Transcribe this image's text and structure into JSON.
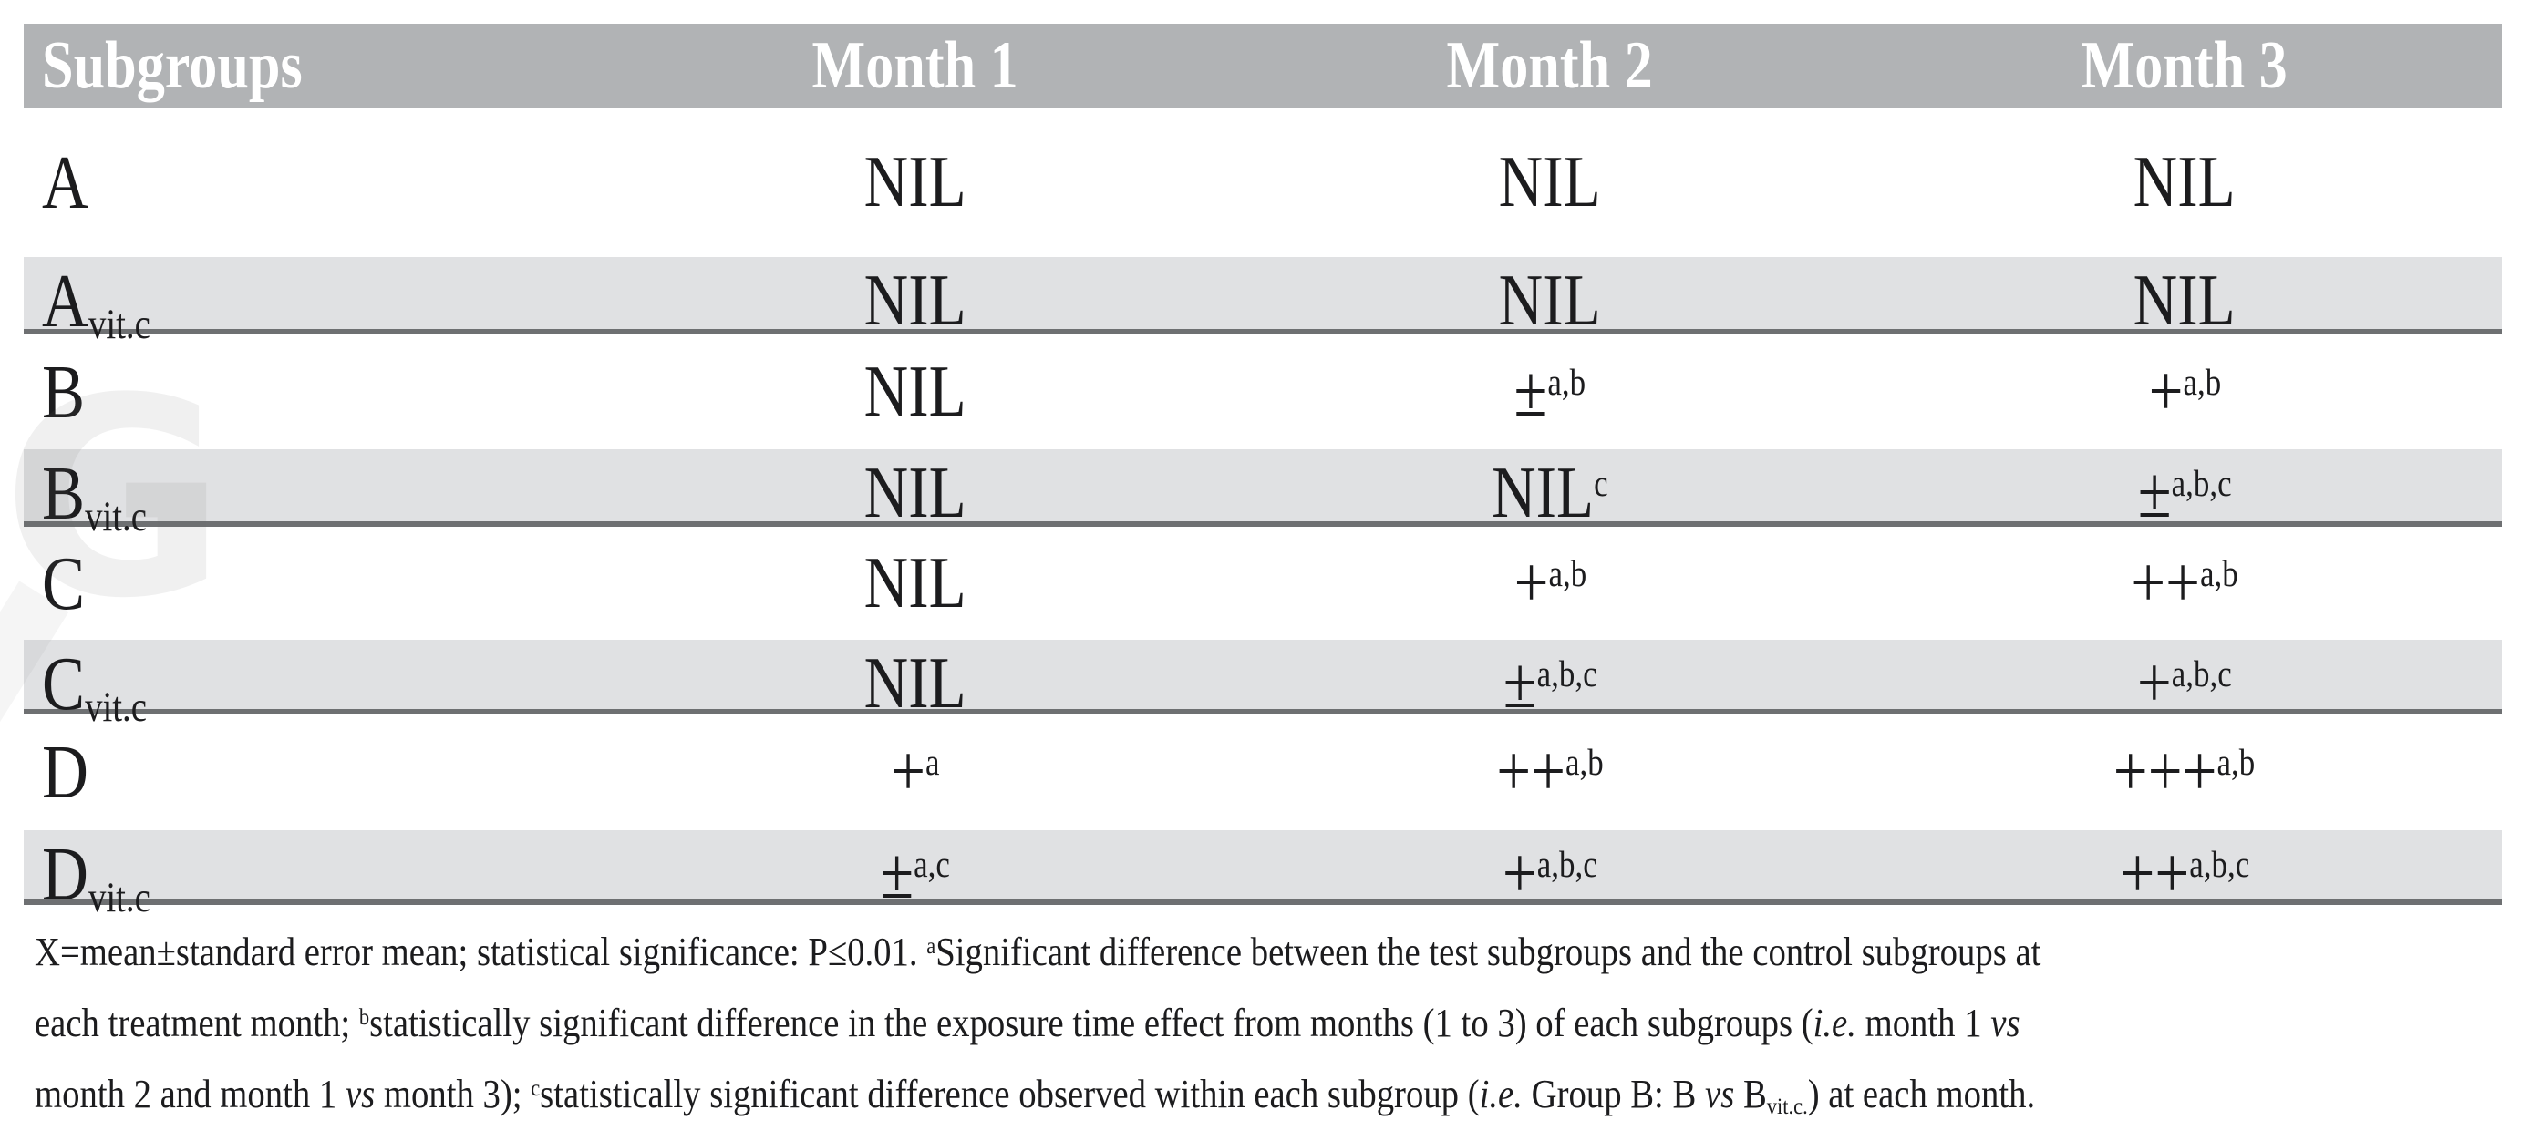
{
  "colors": {
    "header_background": "#b1b3b5",
    "shaded_row_background": "#e0e1e3",
    "divider_line": "#6e7072",
    "text": "#1c1c1e",
    "header_text": "#ffffff"
  },
  "watermark": {
    "glyph": "G"
  },
  "table": {
    "columns": [
      "Subgroups",
      "Month 1",
      "Month 2",
      "Month 3"
    ],
    "rows": [
      {
        "label": {
          "base": "A",
          "sub": ""
        },
        "cells": [
          {
            "base": "NIL",
            "sup": ""
          },
          {
            "base": "NIL",
            "sup": ""
          },
          {
            "base": "NIL",
            "sup": ""
          }
        ]
      },
      {
        "label": {
          "base": "A",
          "sub": "vit.c"
        },
        "cells": [
          {
            "base": "NIL",
            "sup": ""
          },
          {
            "base": "NIL",
            "sup": ""
          },
          {
            "base": "NIL",
            "sup": ""
          }
        ]
      },
      {
        "label": {
          "base": "B",
          "sub": ""
        },
        "cells": [
          {
            "base": "NIL",
            "sup": ""
          },
          {
            "base": "±",
            "sup": "a,b"
          },
          {
            "base": "+",
            "sup": "a,b"
          }
        ]
      },
      {
        "label": {
          "base": "B",
          "sub": "vit.c"
        },
        "cells": [
          {
            "base": "NIL",
            "sup": ""
          },
          {
            "base": "NIL",
            "sup": "c"
          },
          {
            "base": "±",
            "sup": "a,b,c"
          }
        ]
      },
      {
        "label": {
          "base": "C",
          "sub": ""
        },
        "cells": [
          {
            "base": "NIL",
            "sup": ""
          },
          {
            "base": "+",
            "sup": "a,b"
          },
          {
            "base": "++",
            "sup": "a,b"
          }
        ]
      },
      {
        "label": {
          "base": "C",
          "sub": "vit.c"
        },
        "cells": [
          {
            "base": "NIL",
            "sup": ""
          },
          {
            "base": "±",
            "sup": "a,b,c"
          },
          {
            "base": "+",
            "sup": "a,b,c"
          }
        ]
      },
      {
        "label": {
          "base": "D",
          "sub": ""
        },
        "cells": [
          {
            "base": "+",
            "sup": "a"
          },
          {
            "base": "++",
            "sup": "a,b"
          },
          {
            "base": "+++",
            "sup": "a,b"
          }
        ]
      },
      {
        "label": {
          "base": "D",
          "sub": "vit.c"
        },
        "cells": [
          {
            "base": "±",
            "sup": "a,c"
          },
          {
            "base": "+",
            "sup": "a,b,c"
          },
          {
            "base": "++",
            "sup": "a,b,c"
          }
        ]
      }
    ]
  },
  "footnote": {
    "line1": {
      "t1": "X=mean±standard error mean; statistical significance: P≤0.01. ",
      "sup1": "a",
      "t2": "Significant difference between the test subgroups and the control subgroups at"
    },
    "line2": {
      "t1": "each treatment month; ",
      "sup1": "b",
      "t2": "statistically significant difference in the exposure time effect from months (1 to 3) of each subgroups (",
      "i1": "i.e.",
      "t3": " month 1 ",
      "i2": "vs"
    },
    "line3": {
      "t1": "month 2 and month 1 ",
      "i1": "vs",
      "t2": " month 3); ",
      "sup1": "c",
      "t3": "statistically significant difference observed within each subgroup (",
      "i2": "i.e.",
      "t4": " Group B: B ",
      "i3": "vs",
      "t5": " B",
      "sub1": "vit.c.",
      "t6": ") at each month."
    }
  }
}
